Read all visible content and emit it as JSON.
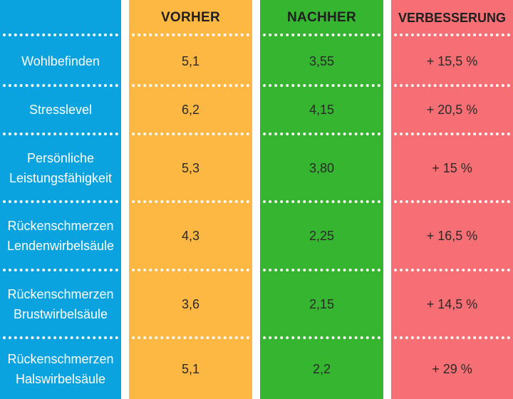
{
  "colors": {
    "label_column": "#0aa3df",
    "vorher": "#fcb843",
    "nachher": "#35b530",
    "verbesserung": "#f66f74"
  },
  "chart_data": {
    "type": "table",
    "columns": [
      "",
      "VORHER",
      "NACHHER",
      "VERBESSERUNG"
    ],
    "rows": [
      {
        "label": "Wohlbefinden",
        "vorher": "5,1",
        "nachher": "3,55",
        "verbesserung": "+ 15,5 %"
      },
      {
        "label": "Stresslevel",
        "vorher": "6,2",
        "nachher": "4,15",
        "verbesserung": "+ 20,5 %"
      },
      {
        "label": "Persönliche Leistungsfähigkeit",
        "vorher": "5,3",
        "nachher": "3,80",
        "verbesserung": "+ 15 %"
      },
      {
        "label": "Rückenschmerzen Lendenwirbelsäule",
        "vorher": "4,3",
        "nachher": "2,25",
        "verbesserung": "+ 16,5 %"
      },
      {
        "label": "Rückenschmerzen Brustwirbelsäule",
        "vorher": "3,6",
        "nachher": "2,15",
        "verbesserung": "+ 14,5 %"
      },
      {
        "label": "Rückenschmerzen Halswirbelsäule",
        "vorher": "5,1",
        "nachher": "2,2",
        "verbesserung": "+ 29 %"
      }
    ]
  }
}
